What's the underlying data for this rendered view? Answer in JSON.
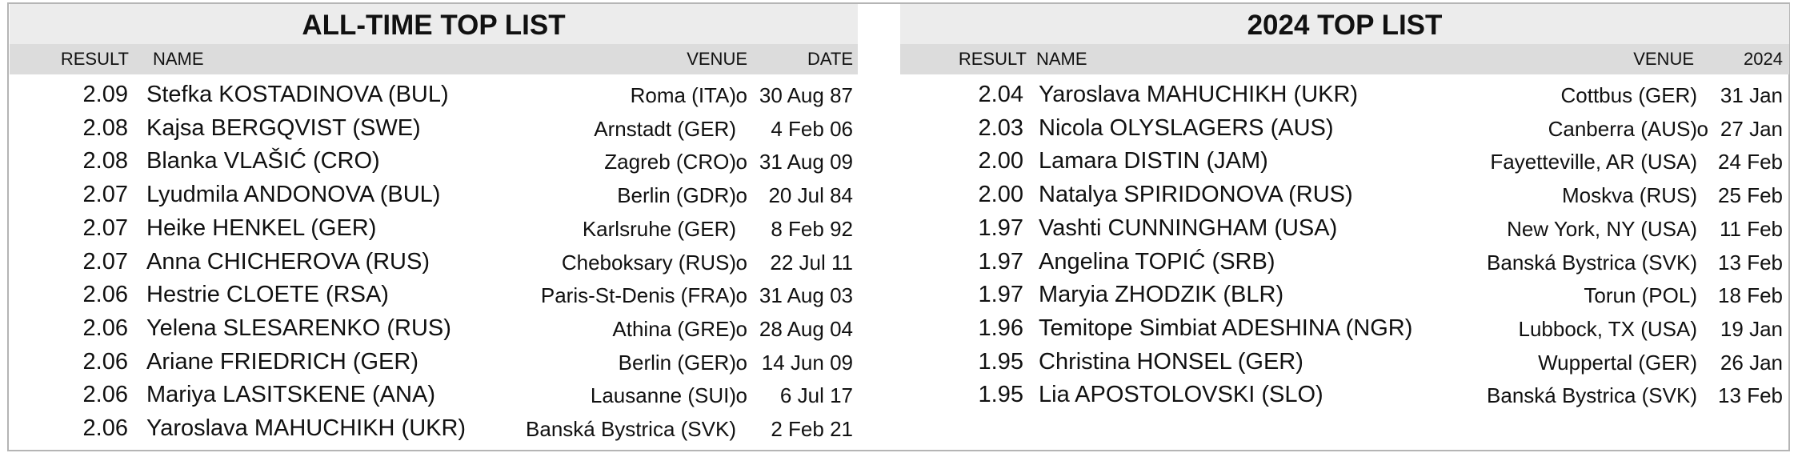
{
  "tables": [
    {
      "title": "ALL-TIME TOP LIST",
      "headers": {
        "result": "RESULT",
        "name": "NAME",
        "venue": "VENUE",
        "date": "DATE"
      },
      "rows": [
        {
          "result": "2.09",
          "name": "Stefka KOSTADINOVA (BUL)",
          "venue": "Roma (ITA)",
          "indoor": "o",
          "date": "30 Aug 87"
        },
        {
          "result": "2.08",
          "name": "Kajsa BERGQVIST (SWE)",
          "venue": "Arnstadt (GER)",
          "date": "4 Feb 06"
        },
        {
          "result": "2.08",
          "name": "Blanka VLAŠIĆ (CRO)",
          "venue": "Zagreb (CRO)",
          "indoor": "o",
          "date": "31 Aug 09"
        },
        {
          "result": "2.07",
          "name": "Lyudmila ANDONOVA (BUL)",
          "venue": "Berlin (GDR)",
          "indoor": "o",
          "date": "20 Jul 84"
        },
        {
          "result": "2.07",
          "name": "Heike HENKEL (GER)",
          "venue": "Karlsruhe (GER)",
          "date": "8 Feb 92"
        },
        {
          "result": "2.07",
          "name": "Anna CHICHEROVA (RUS)",
          "venue": "Cheboksary (RUS)",
          "indoor": "o",
          "date": "22 Jul 11"
        },
        {
          "result": "2.06",
          "name": "Hestrie CLOETE (RSA)",
          "venue": "Paris-St-Denis (FRA)",
          "indoor": "o",
          "date": "31 Aug 03"
        },
        {
          "result": "2.06",
          "name": "Yelena SLESARENKO (RUS)",
          "venue": "Athina (GRE)",
          "indoor": "o",
          "date": "28 Aug 04"
        },
        {
          "result": "2.06",
          "name": "Ariane FRIEDRICH (GER)",
          "venue": "Berlin (GER)",
          "indoor": "o",
          "date": "14 Jun 09"
        },
        {
          "result": "2.06",
          "name": "Mariya LASITSKENE (ANA)",
          "venue": "Lausanne (SUI)",
          "indoor": "o",
          "date": "6 Jul 17"
        },
        {
          "result": "2.06",
          "name": "Yaroslava MAHUCHIKH (UKR)",
          "venue": "Banská Bystrica (SVK)",
          "date": "2 Feb 21"
        }
      ]
    },
    {
      "title": "2024 TOP LIST",
      "headers": {
        "result": "RESULT",
        "name": "NAME",
        "venue": "VENUE",
        "date": "2024"
      },
      "rows": [
        {
          "result": "2.04",
          "name": "Yaroslava MAHUCHIKH (UKR)",
          "venue": "Cottbus (GER)",
          "date": "31 Jan"
        },
        {
          "result": "2.03",
          "name": "Nicola OLYSLAGERS (AUS)",
          "venue": "Canberra (AUS)",
          "indoor": "o",
          "date": "27 Jan"
        },
        {
          "result": "2.00",
          "name": "Lamara DISTIN (JAM)",
          "venue": "Fayetteville, AR (USA)",
          "date": "24 Feb"
        },
        {
          "result": "2.00",
          "name": "Natalya SPIRIDONOVA (RUS)",
          "venue": "Moskva (RUS)",
          "date": "25 Feb"
        },
        {
          "result": "1.97",
          "name": "Vashti CUNNINGHAM (USA)",
          "venue": "New York, NY (USA)",
          "date": "11 Feb"
        },
        {
          "result": "1.97",
          "name": "Angelina TOPIĆ (SRB)",
          "venue": "Banská Bystrica (SVK)",
          "date": "13 Feb"
        },
        {
          "result": "1.97",
          "name": "Maryia ZHODZIK (BLR)",
          "venue": "Torun (POL)",
          "date": "18 Feb"
        },
        {
          "result": "1.96",
          "name": "Temitope Simbiat ADESHINA (NGR)",
          "venue": "Lubbock, TX (USA)",
          "date": "19 Jan"
        },
        {
          "result": "1.95",
          "name": "Christina HONSEL (GER)",
          "venue": "Wuppertal (GER)",
          "date": "26 Jan"
        },
        {
          "result": "1.95",
          "name": "Lia APOSTOLOVSKI (SLO)",
          "venue": "Banská Bystrica (SVK)",
          "date": "13 Feb"
        }
      ]
    }
  ]
}
